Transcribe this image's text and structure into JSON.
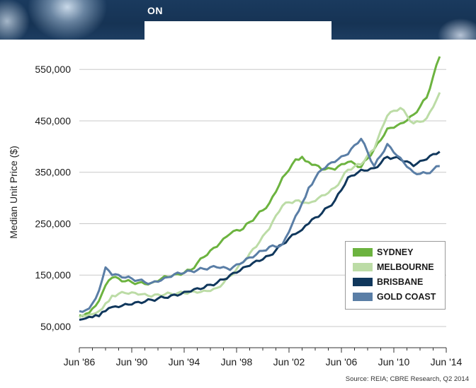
{
  "banner": {
    "title": "ON"
  },
  "source": "Source: REIA; CBRE Research, Q2 2014",
  "chart_data": {
    "type": "line",
    "title": "",
    "xlabel": "",
    "ylabel": "Median Unit Price ($)",
    "x": [
      1986.5,
      1987,
      1987.5,
      1988,
      1988.5,
      1989,
      1990,
      1991,
      1992,
      1993,
      1994,
      1995,
      1996,
      1997,
      1998,
      1999,
      2000,
      2001,
      2002,
      2003,
      2003.5,
      2004,
      2005,
      2006,
      2007,
      2008,
      2009,
      2010,
      2011,
      2012,
      2013,
      2014
    ],
    "x_ticks": [
      "Jun '86",
      "Jun '90",
      "Jun '94",
      "Jun '98",
      "Jun '02",
      "Jun '06",
      "Jun '10",
      "Jun '14"
    ],
    "x_tick_values": [
      1986.5,
      1990.5,
      1994.5,
      1998.5,
      2002.5,
      2006.5,
      2010.5,
      2014.5
    ],
    "xlim": [
      1986.5,
      2014.5
    ],
    "y_ticks": [
      "50,000",
      "150,000",
      "250,000",
      "350,000",
      "450,000",
      "550,000"
    ],
    "y_tick_values": [
      50000,
      150000,
      250000,
      350000,
      450000,
      550000
    ],
    "ylim": [
      50000,
      575000
    ],
    "grid": "horizontal",
    "legend_position": "bottom-right",
    "series": [
      {
        "name": "SYDNEY",
        "color": "#6cb33f",
        "values": [
          72000,
          75000,
          85000,
          100000,
          130000,
          145000,
          138000,
          135000,
          135000,
          148000,
          152000,
          160000,
          185000,
          205000,
          230000,
          240000,
          265000,
          290000,
          340000,
          375000,
          380000,
          370000,
          355000,
          355000,
          370000,
          360000,
          395000,
          435000,
          445000,
          462000,
          495000,
          575000
        ]
      },
      {
        "name": "MELBOURNE",
        "color": "#bcdca6",
        "values": [
          68000,
          70000,
          74000,
          80000,
          95000,
          110000,
          115000,
          112000,
          108000,
          112000,
          115000,
          118000,
          120000,
          125000,
          148000,
          175000,
          205000,
          240000,
          285000,
          295000,
          290000,
          290000,
          305000,
          320000,
          355000,
          365000,
          395000,
          460000,
          475000,
          445000,
          455000,
          505000
        ]
      },
      {
        "name": "BRISBANE",
        "color": "#10375c",
        "values": [
          63000,
          66000,
          68000,
          70000,
          80000,
          88000,
          94000,
          98000,
          102000,
          106000,
          110000,
          118000,
          125000,
          135000,
          150000,
          165000,
          178000,
          188000,
          210000,
          230000,
          238000,
          250000,
          270000,
          295000,
          340000,
          355000,
          358000,
          380000,
          375000,
          362000,
          375000,
          390000
        ]
      },
      {
        "name": "GOLD COAST",
        "color": "#5a7ea6",
        "values": [
          80000,
          82000,
          95000,
          120000,
          165000,
          150000,
          145000,
          140000,
          135000,
          145000,
          155000,
          158000,
          162000,
          165000,
          160000,
          175000,
          190000,
          205000,
          210000,
          265000,
          290000,
          320000,
          355000,
          370000,
          385000,
          415000,
          362000,
          405000,
          378000,
          350000,
          348000,
          362000
        ]
      }
    ]
  }
}
